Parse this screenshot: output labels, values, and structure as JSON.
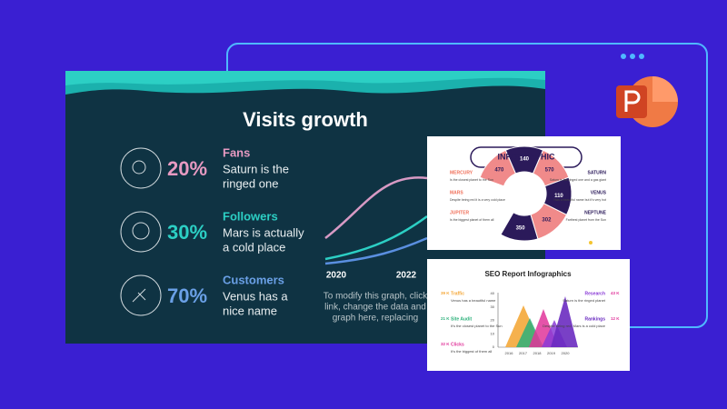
{
  "main_slide": {
    "title": "Visits growth",
    "items": [
      {
        "label": "Fans",
        "percent": "20%",
        "text_lines": [
          "Saturn is the",
          "ringed one"
        ]
      },
      {
        "label": "Followers",
        "percent": "30%",
        "text_lines": [
          "Mars is actually",
          "a cold place"
        ]
      },
      {
        "label": "Customers",
        "percent": "70%",
        "text_lines": [
          "Venus has a",
          "nice name"
        ]
      }
    ],
    "chart_x_labels": [
      "2020",
      "2022"
    ],
    "caption_lines": [
      "To modify this graph, click",
      "link, change the data and",
      "graph here, replacing"
    ]
  },
  "infographic_card": {
    "title": "INFOGRAPHIC",
    "left": [
      {
        "name": "MERCURY",
        "text": "Is the closest planet to the Sun"
      },
      {
        "name": "MARS",
        "text": "Despite being red it is a very cold place"
      },
      {
        "name": "JUPITER",
        "text": "Is the biggest planet of them all"
      }
    ],
    "right": [
      {
        "name": "SATURN",
        "text": "Saturn is the ringed one and a gas giant"
      },
      {
        "name": "VENUS",
        "text": "Has a beautiful name but it's very hot"
      },
      {
        "name": "NEPTUNE",
        "text": "Farthest planet from the Sun"
      }
    ],
    "segments": [
      "470",
      "140",
      "570",
      "110",
      "302",
      "350"
    ]
  },
  "seo_card": {
    "title": "SEO Report Infographics",
    "left": [
      {
        "value": "39 K",
        "name": "Traffic",
        "text": "Venus has a beautiful name"
      },
      {
        "value": "21 K",
        "name": "Site Audit",
        "text": "It's the closest planet to the Sun"
      },
      {
        "value": "32 K",
        "name": "Clicks",
        "text": "It's the biggest of them all"
      }
    ],
    "right": [
      {
        "value": "43 K",
        "name": "Research",
        "text": "Saturn is the ringed planet"
      },
      {
        "value": "12 K",
        "name": "Rankings",
        "text": "Despite being red, Mars is a cold place"
      }
    ],
    "y_labels": [
      "40",
      "30",
      "20",
      "10",
      "0"
    ],
    "x_labels": [
      "2016",
      "2017",
      "2018",
      "2019",
      "2020"
    ]
  }
}
